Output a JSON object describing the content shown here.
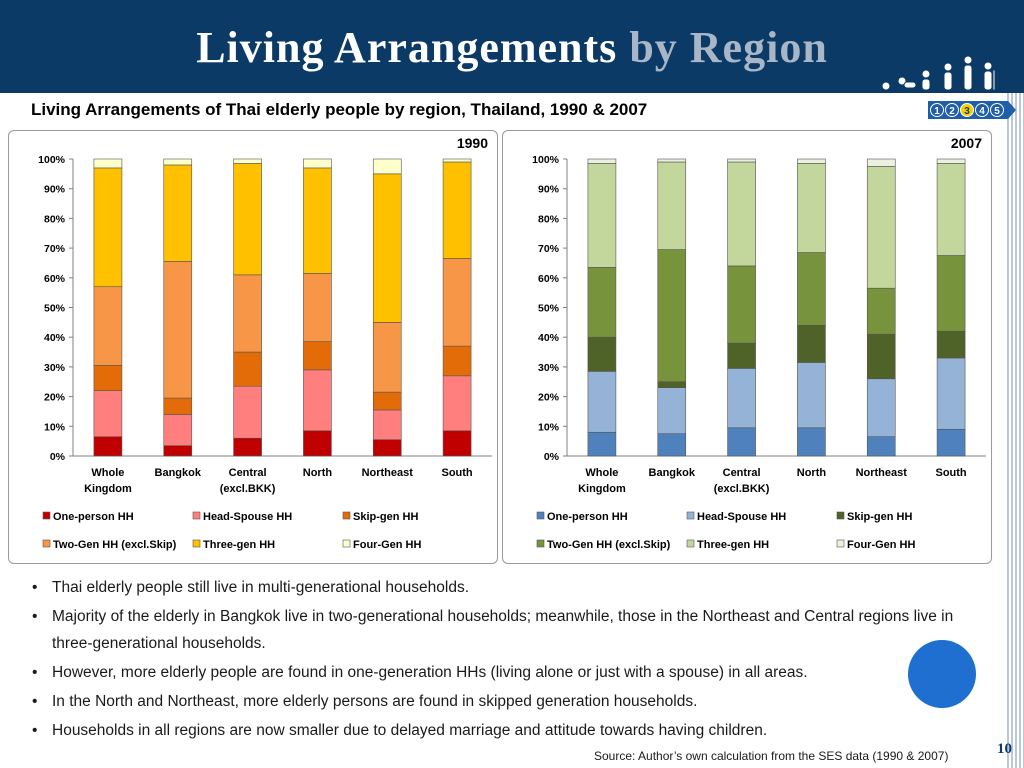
{
  "slide": {
    "title_main": "Living Arrangements",
    "title_accent": "by Region",
    "subtitle": "Living Arrangements of Thai elderly people by region, Thailand, 1990 & 2007",
    "nav_steps": [
      "1",
      "2",
      "3",
      "4",
      "5"
    ],
    "bullets": [
      "Thai elderly people still live in multi-generational households.",
      "Majority of the elderly in Bangkok live in two-generational households; meanwhile, those in the Northeast and Central regions live in three-generational households.",
      "However, more elderly people are found in one-generation HHs (living alone or just with a spouse) in all areas.",
      "In the North and Northeast, more elderly persons are found in skipped generation households.",
      "Households in all regions are now smaller due to delayed marriage and attitude towards having children."
    ],
    "source": "Source: Author’s own calculation from the SES data (1990 & 2007)",
    "page_number": "10",
    "colors": {
      "header_bg": "#0b3a66",
      "title_accent": "#a8b6c8",
      "nav_active": "#f4d000",
      "blue_dot": "#1e6fd0"
    }
  },
  "chart_data": [
    {
      "type": "bar",
      "stacked": true,
      "title": "1990",
      "categories": [
        [
          "Whole",
          "Kingdom"
        ],
        [
          "Bangkok"
        ],
        [
          "Central",
          "(excl.BKK)"
        ],
        [
          "North"
        ],
        [
          "Northeast"
        ],
        [
          "South"
        ]
      ],
      "yticks": [
        "0%",
        "10%",
        "20%",
        "30%",
        "40%",
        "50%",
        "60%",
        "70%",
        "80%",
        "90%",
        "100%"
      ],
      "ylim": [
        0,
        100
      ],
      "grid": false,
      "legend_position": "bottom",
      "series": [
        {
          "name": "One-person HH",
          "color": "#c00000",
          "values": [
            6.5,
            3.5,
            6,
            8.5,
            5.5,
            8.5
          ]
        },
        {
          "name": "Head-Spouse HH",
          "color": "#ff7f7f",
          "values": [
            15.5,
            10.5,
            17.5,
            20.5,
            10,
            18.5
          ]
        },
        {
          "name": "Skip-gen HH",
          "color": "#e36c09",
          "values": [
            8.5,
            5.5,
            11.5,
            9.5,
            6,
            10
          ]
        },
        {
          "name": "Two-Gen HH (excl.Skip)",
          "color": "#f79646",
          "values": [
            26.5,
            46,
            26,
            23,
            23.5,
            29.5
          ]
        },
        {
          "name": "Three-gen HH",
          "color": "#ffc000",
          "values": [
            40,
            32.5,
            37.5,
            35.5,
            50,
            32.5
          ]
        },
        {
          "name": "Four-Gen HH",
          "color": "#ffffcc",
          "values": [
            3,
            2,
            1.5,
            3,
            5,
            1
          ]
        }
      ]
    },
    {
      "type": "bar",
      "stacked": true,
      "title": "2007",
      "categories": [
        [
          "Whole",
          "Kingdom"
        ],
        [
          "Bangkok"
        ],
        [
          "Central",
          "(excl.BKK)"
        ],
        [
          "North"
        ],
        [
          "Northeast"
        ],
        [
          "South"
        ]
      ],
      "yticks": [
        "0%",
        "10%",
        "20%",
        "30%",
        "40%",
        "50%",
        "60%",
        "70%",
        "80%",
        "90%",
        "100%"
      ],
      "ylim": [
        0,
        100
      ],
      "grid": false,
      "legend_position": "bottom",
      "series": [
        {
          "name": "One-person HH",
          "color": "#4f81bd",
          "values": [
            8,
            7.5,
            9.5,
            9.5,
            6.5,
            9
          ]
        },
        {
          "name": "Head-Spouse HH",
          "color": "#95b3d7",
          "values": [
            20.5,
            15.5,
            20,
            22,
            19.5,
            24
          ]
        },
        {
          "name": "Skip-gen HH",
          "color": "#4f6228",
          "values": [
            11.5,
            2,
            8.5,
            12.5,
            15,
            9
          ]
        },
        {
          "name": "Two-Gen HH (excl.Skip)",
          "color": "#77933c",
          "values": [
            23.5,
            44.5,
            26,
            24.5,
            15.5,
            25.5
          ]
        },
        {
          "name": "Three-gen HH",
          "color": "#c3d69b",
          "values": [
            35,
            29.5,
            35,
            30,
            41,
            31
          ]
        },
        {
          "name": "Four-Gen HH",
          "color": "#ebf1de",
          "values": [
            1.5,
            1,
            1,
            1.5,
            2.5,
            1.5
          ]
        }
      ]
    }
  ]
}
